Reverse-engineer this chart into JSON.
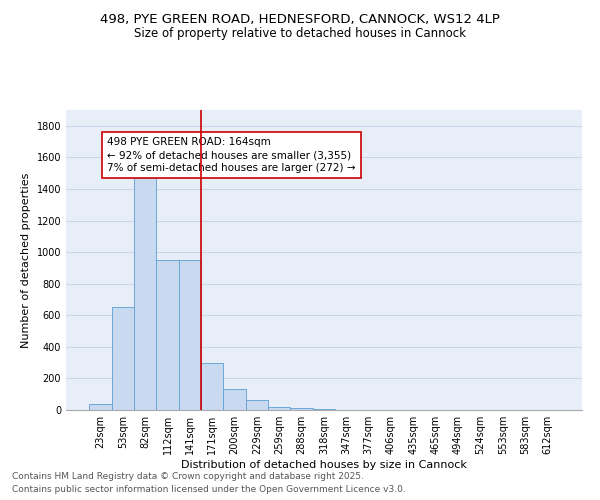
{
  "title_line1": "498, PYE GREEN ROAD, HEDNESFORD, CANNOCK, WS12 4LP",
  "title_line2": "Size of property relative to detached houses in Cannock",
  "xlabel": "Distribution of detached houses by size in Cannock",
  "ylabel": "Number of detached properties",
  "categories": [
    "23sqm",
    "53sqm",
    "82sqm",
    "112sqm",
    "141sqm",
    "171sqm",
    "200sqm",
    "229sqm",
    "259sqm",
    "288sqm",
    "318sqm",
    "347sqm",
    "377sqm",
    "406sqm",
    "435sqm",
    "465sqm",
    "494sqm",
    "524sqm",
    "553sqm",
    "583sqm",
    "612sqm"
  ],
  "values": [
    40,
    650,
    1500,
    950,
    950,
    295,
    130,
    65,
    22,
    12,
    5,
    2,
    2,
    2,
    0,
    0,
    0,
    0,
    0,
    0,
    0
  ],
  "bar_color": "#c8d9f0",
  "bar_edge_color": "#5a9fd4",
  "vline_color": "#cc0000",
  "vline_index": 5,
  "annotation_text": "498 PYE GREEN ROAD: 164sqm\n← 92% of detached houses are smaller (3,355)\n7% of semi-detached houses are larger (272) →",
  "annotation_box_color": "#cc0000",
  "ylim": [
    0,
    1900
  ],
  "yticks": [
    0,
    200,
    400,
    600,
    800,
    1000,
    1200,
    1400,
    1600,
    1800
  ],
  "grid_color": "#c8d4e8",
  "bg_color": "#e8eef8",
  "footer_line1": "Contains HM Land Registry data © Crown copyright and database right 2025.",
  "footer_line2": "Contains public sector information licensed under the Open Government Licence v3.0.",
  "title_fontsize": 9.5,
  "subtitle_fontsize": 8.5,
  "axis_label_fontsize": 8,
  "tick_fontsize": 7,
  "annotation_fontsize": 7.5,
  "footer_fontsize": 6.5
}
